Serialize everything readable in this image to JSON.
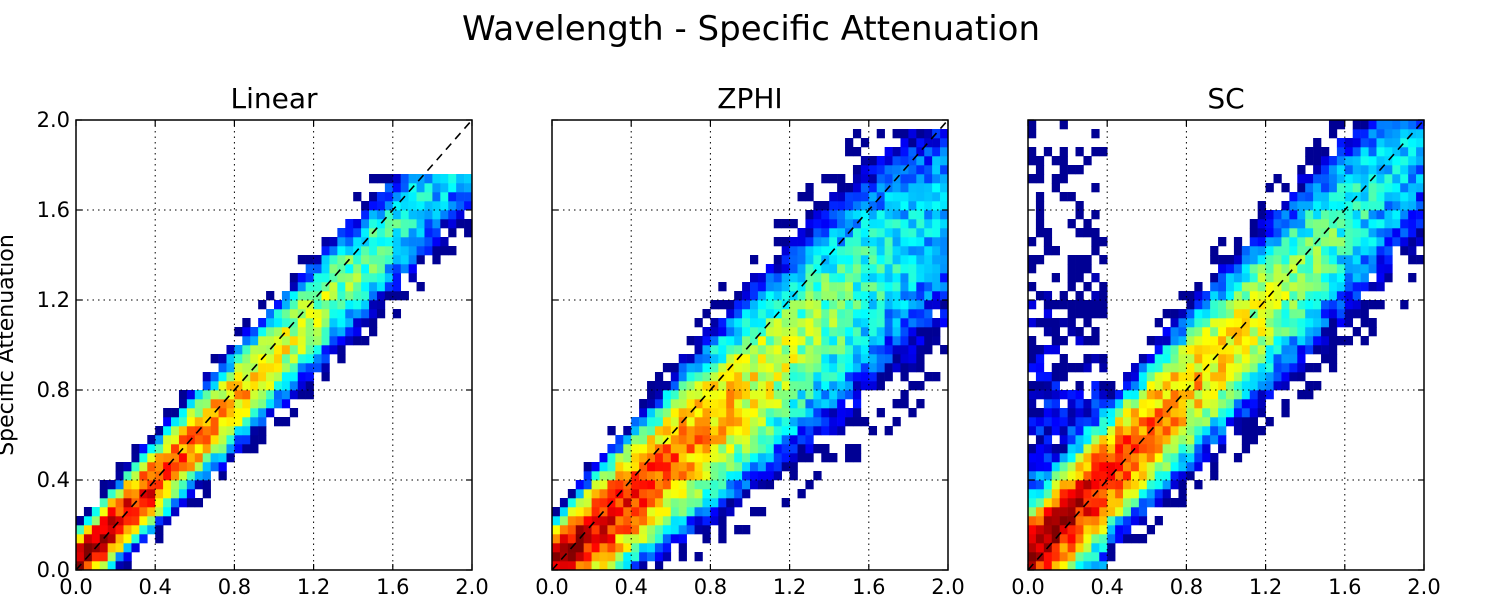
{
  "figure": {
    "title": "Wavelength - Specific Attenuation",
    "ylabel": "Specific Attenuation"
  },
  "chart_data": [
    {
      "type": "heatmap",
      "title": "Linear",
      "xlabel": "",
      "ylabel": "Specific Attenuation",
      "xlim": [
        0.0,
        2.0
      ],
      "ylim": [
        0.0,
        2.0
      ],
      "xticks": [
        "0.0",
        "0.4",
        "0.8",
        "1.2",
        "1.6",
        "2.0"
      ],
      "yticks": [
        "0.0",
        "0.4",
        "0.8",
        "1.2",
        "1.6",
        "2.0"
      ],
      "grid": true,
      "colormap": "jet",
      "reference_line": {
        "style": "dashed",
        "color": "#000000",
        "from": [
          0.0,
          0.0
        ],
        "to": [
          2.0,
          2.0
        ]
      },
      "density_model": {
        "slope": 0.92,
        "intercept": 0.02,
        "spread": 0.06,
        "spread_growth": 0.05,
        "peak_at_x": 0.0,
        "extent_x": 2.0,
        "max_y": 1.75
      }
    },
    {
      "type": "heatmap",
      "title": "ZPHI",
      "xlabel": "",
      "ylabel": "",
      "xlim": [
        0.0,
        2.0
      ],
      "ylim": [
        0.0,
        2.0
      ],
      "xticks": [
        "0.0",
        "0.4",
        "0.8",
        "1.2",
        "1.6",
        "2.0"
      ],
      "yticks": [],
      "grid": true,
      "colormap": "jet",
      "reference_line": {
        "style": "dashed",
        "color": "#000000",
        "from": [
          0.0,
          0.0
        ],
        "to": [
          2.0,
          2.0
        ]
      },
      "density_model": {
        "slope": 0.8,
        "intercept": 0.0,
        "spread": 0.08,
        "spread_growth": 0.12,
        "peak_at_x": 0.0,
        "extent_x": 2.0,
        "max_y": 1.95
      }
    },
    {
      "type": "heatmap",
      "title": "SC",
      "xlabel": "",
      "ylabel": "",
      "xlim": [
        0.0,
        2.0
      ],
      "ylim": [
        0.0,
        2.0
      ],
      "xticks": [
        "0.0",
        "0.4",
        "0.8",
        "1.2",
        "1.6",
        "2.0"
      ],
      "yticks": [],
      "grid": true,
      "colormap": "jet",
      "reference_line": {
        "style": "dashed",
        "color": "#000000",
        "from": [
          0.0,
          0.0
        ],
        "to": [
          2.0,
          2.0
        ]
      },
      "density_model": {
        "slope": 0.92,
        "intercept": 0.05,
        "spread": 0.09,
        "spread_growth": 0.08,
        "peak_at_x": 0.0,
        "extent_x": 2.0,
        "max_y": 2.0,
        "vertical_plume_x": [
          0.0,
          0.4
        ]
      }
    }
  ]
}
